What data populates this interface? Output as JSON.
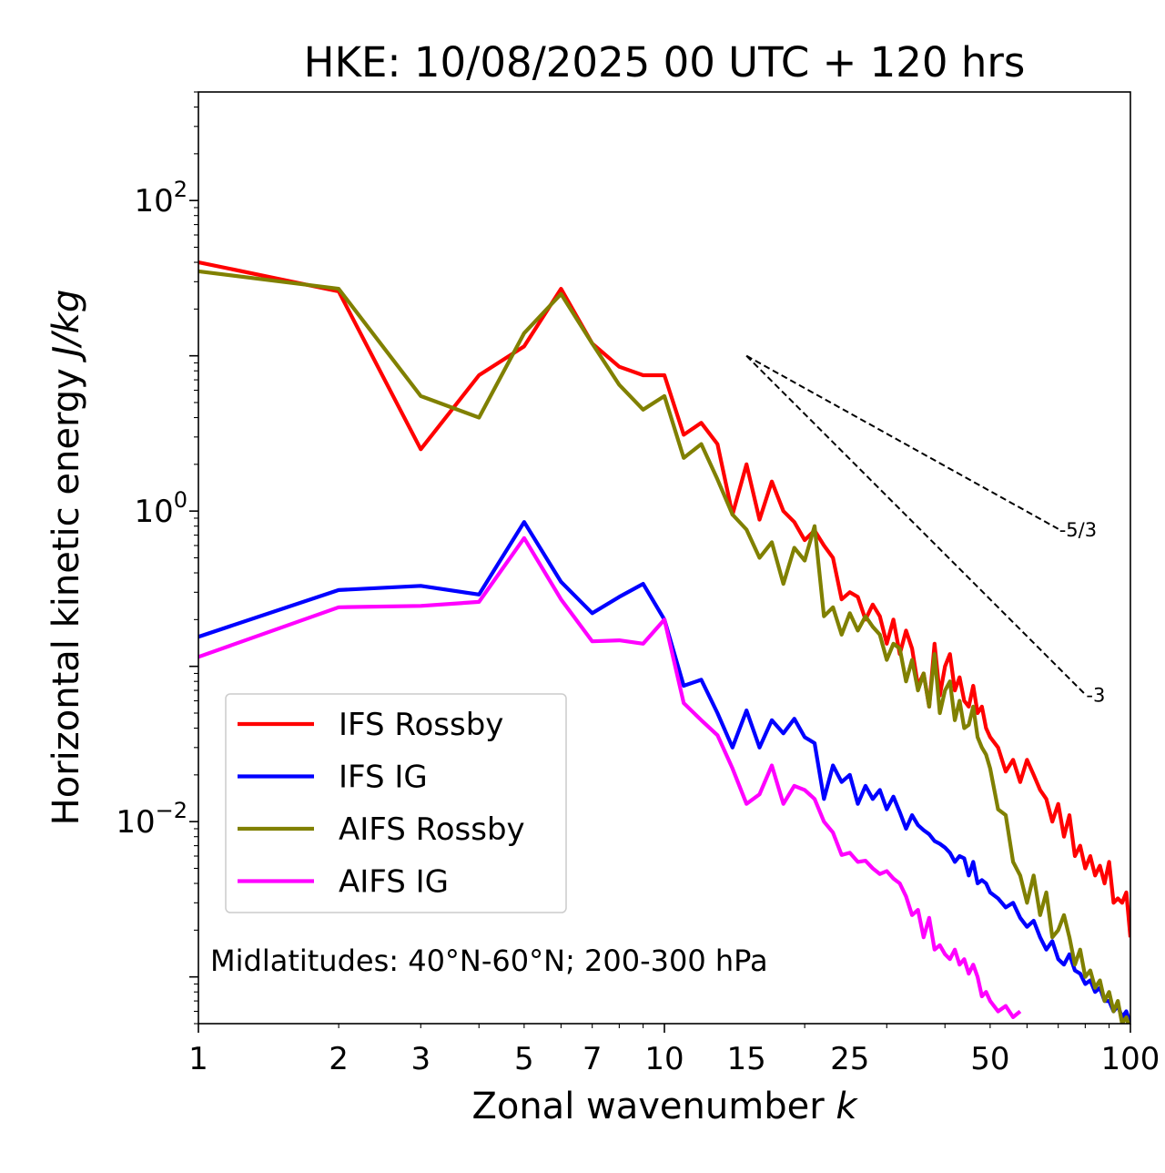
{
  "chart_data": {
    "type": "line",
    "title": "HKE: 10/08/2025 00 UTC + 120 hrs",
    "xlabel": "Zonal wavenumber",
    "xlabel_var": "k",
    "ylabel": "Horizontal kinetic energy",
    "ylabel_unit": "J/kg",
    "x_scale": "log",
    "y_scale": "log",
    "xlim": [
      1,
      100
    ],
    "ylim": [
      0.0005,
      500
    ],
    "x_ticks": [
      {
        "value": 1,
        "label": "1"
      },
      {
        "value": 2,
        "label": "2"
      },
      {
        "value": 3,
        "label": "3"
      },
      {
        "value": 5,
        "label": "5"
      },
      {
        "value": 7,
        "label": "7"
      },
      {
        "value": 10,
        "label": "10"
      },
      {
        "value": 15,
        "label": "15"
      },
      {
        "value": 25,
        "label": "25"
      },
      {
        "value": 50,
        "label": "50"
      },
      {
        "value": 100,
        "label": "100"
      }
    ],
    "y_ticks": [
      {
        "value": 100,
        "base": "10",
        "exp": "2"
      },
      {
        "value": 1,
        "base": "10",
        "exp": "0"
      },
      {
        "value": 0.01,
        "base": "10",
        "exp": "−2"
      }
    ],
    "annotation": "Midlatitudes: 40°N-60°N; 200-300 hPa",
    "legend_position": "lower-left",
    "reference_slopes": [
      {
        "label": "-5/3",
        "slope": -1.6667,
        "x_start": 15,
        "x_end": 70,
        "y_start": 10
      },
      {
        "label": "-3",
        "slope": -3,
        "x_start": 15,
        "x_end": 80,
        "y_start": 10
      }
    ],
    "series": [
      {
        "name": "IFS Rossby",
        "color": "#ff0000",
        "x": [
          1,
          2,
          3,
          4,
          5,
          6,
          7,
          8,
          9,
          10,
          11,
          12,
          13,
          14,
          15,
          16,
          17,
          18,
          19,
          20,
          21,
          22,
          23,
          24,
          25,
          26,
          27,
          28,
          29,
          30,
          31,
          32,
          33,
          34,
          35,
          36,
          37,
          38,
          39,
          40,
          41,
          42,
          43,
          44,
          45,
          46,
          47,
          48,
          49,
          50,
          52,
          54,
          56,
          58,
          60,
          62,
          64,
          66,
          68,
          70,
          72,
          74,
          76,
          78,
          80,
          82,
          84,
          86,
          88,
          90,
          92,
          94,
          96,
          98,
          100
        ],
        "values": [
          40,
          26,
          2.5,
          7.5,
          11.5,
          27,
          12,
          8.5,
          7.5,
          7.5,
          3.1,
          3.7,
          2.7,
          0.95,
          2,
          0.88,
          1.55,
          1.0,
          0.85,
          0.65,
          0.75,
          0.6,
          0.5,
          0.27,
          0.3,
          0.28,
          0.2,
          0.25,
          0.21,
          0.14,
          0.2,
          0.12,
          0.17,
          0.13,
          0.075,
          0.09,
          0.055,
          0.14,
          0.065,
          0.1,
          0.12,
          0.07,
          0.085,
          0.06,
          0.055,
          0.075,
          0.05,
          0.055,
          0.04,
          0.035,
          0.03,
          0.021,
          0.025,
          0.018,
          0.025,
          0.02,
          0.016,
          0.014,
          0.01,
          0.013,
          0.008,
          0.011,
          0.006,
          0.007,
          0.005,
          0.006,
          0.0045,
          0.0052,
          0.004,
          0.0055,
          0.003,
          0.0032,
          0.003,
          0.0035,
          0.0018
        ]
      },
      {
        "name": "IFS IG",
        "color": "#0000ff",
        "x": [
          1,
          2,
          3,
          4,
          5,
          6,
          7,
          8,
          9,
          10,
          11,
          12,
          13,
          14,
          15,
          16,
          17,
          18,
          19,
          20,
          21,
          22,
          23,
          24,
          25,
          26,
          27,
          28,
          29,
          30,
          31,
          32,
          33,
          34,
          35,
          36,
          37,
          38,
          39,
          40,
          41,
          42,
          43,
          44,
          45,
          46,
          47,
          48,
          49,
          50,
          52,
          54,
          56,
          58,
          60,
          62,
          64,
          66,
          68,
          70,
          72,
          74,
          76,
          78,
          80,
          82,
          84,
          86,
          88,
          90,
          92,
          94,
          96,
          98,
          100
        ],
        "values": [
          0.155,
          0.31,
          0.33,
          0.29,
          0.85,
          0.35,
          0.22,
          0.28,
          0.34,
          0.2,
          0.075,
          0.082,
          0.05,
          0.03,
          0.052,
          0.03,
          0.045,
          0.037,
          0.046,
          0.035,
          0.032,
          0.014,
          0.023,
          0.018,
          0.02,
          0.013,
          0.017,
          0.014,
          0.016,
          0.012,
          0.0145,
          0.0115,
          0.009,
          0.011,
          0.0095,
          0.0088,
          0.0083,
          0.0075,
          0.0072,
          0.0068,
          0.0063,
          0.0055,
          0.006,
          0.0058,
          0.0045,
          0.0055,
          0.004,
          0.0042,
          0.004,
          0.0035,
          0.0032,
          0.0028,
          0.003,
          0.0024,
          0.0021,
          0.0023,
          0.0018,
          0.0015,
          0.0017,
          0.0013,
          0.0012,
          0.0014,
          0.0011,
          0.00105,
          0.0009,
          0.00095,
          0.0008,
          0.00085,
          0.0007,
          0.0007,
          0.0006,
          0.00065,
          0.00055,
          0.0006,
          0.0005
        ]
      },
      {
        "name": "AIFS Rossby",
        "color": "#808000",
        "x": [
          1,
          2,
          3,
          4,
          5,
          6,
          7,
          8,
          9,
          10,
          11,
          12,
          13,
          14,
          15,
          16,
          17,
          18,
          19,
          20,
          21,
          22,
          23,
          24,
          25,
          26,
          27,
          28,
          29,
          30,
          31,
          32,
          33,
          34,
          35,
          36,
          37,
          38,
          39,
          40,
          41,
          42,
          43,
          44,
          45,
          46,
          47,
          48,
          49,
          50,
          52,
          54,
          56,
          58,
          60,
          62,
          64,
          66,
          68,
          70,
          72,
          74,
          76,
          78,
          80,
          82,
          84,
          86,
          88,
          90,
          92,
          94,
          96,
          98,
          100
        ],
        "values": [
          35,
          27,
          5.5,
          4,
          14,
          25,
          12,
          6.5,
          4.5,
          5.5,
          2.2,
          2.7,
          1.6,
          0.95,
          0.76,
          0.5,
          0.63,
          0.34,
          0.58,
          0.48,
          0.8,
          0.21,
          0.24,
          0.16,
          0.22,
          0.17,
          0.21,
          0.18,
          0.16,
          0.11,
          0.14,
          0.13,
          0.08,
          0.11,
          0.07,
          0.09,
          0.055,
          0.12,
          0.05,
          0.07,
          0.08,
          0.045,
          0.06,
          0.04,
          0.042,
          0.055,
          0.035,
          0.03,
          0.027,
          0.022,
          0.012,
          0.011,
          0.0055,
          0.0045,
          0.003,
          0.0045,
          0.0025,
          0.0035,
          0.0018,
          0.002,
          0.0025,
          0.0018,
          0.0012,
          0.0015,
          0.001,
          0.0011,
          0.00085,
          0.00095,
          0.0007,
          0.0008,
          0.0006,
          0.0007,
          0.0005,
          0.00055,
          0.00045
        ]
      },
      {
        "name": "AIFS IG",
        "color": "#ff00ff",
        "x": [
          1,
          2,
          3,
          4,
          5,
          6,
          7,
          8,
          9,
          10,
          11,
          12,
          13,
          14,
          15,
          16,
          17,
          18,
          19,
          20,
          21,
          22,
          23,
          24,
          25,
          26,
          27,
          28,
          29,
          30,
          31,
          32,
          33,
          34,
          35,
          36,
          37,
          38,
          39,
          40,
          41,
          42,
          43,
          44,
          45,
          46,
          47,
          48,
          49,
          50,
          52,
          54,
          56,
          58
        ],
        "values": [
          0.115,
          0.24,
          0.245,
          0.26,
          0.67,
          0.27,
          0.145,
          0.147,
          0.14,
          0.2,
          0.058,
          0.045,
          0.036,
          0.022,
          0.013,
          0.015,
          0.023,
          0.013,
          0.017,
          0.016,
          0.014,
          0.01,
          0.0085,
          0.0061,
          0.0063,
          0.0055,
          0.0056,
          0.005,
          0.0046,
          0.0048,
          0.0043,
          0.004,
          0.0033,
          0.0025,
          0.0027,
          0.0018,
          0.0024,
          0.0015,
          0.0016,
          0.0014,
          0.0013,
          0.0015,
          0.0012,
          0.0013,
          0.00105,
          0.0012,
          0.001,
          0.00075,
          0.0008,
          0.0007,
          0.0006,
          0.00065,
          0.00055,
          0.0006
        ]
      }
    ]
  }
}
